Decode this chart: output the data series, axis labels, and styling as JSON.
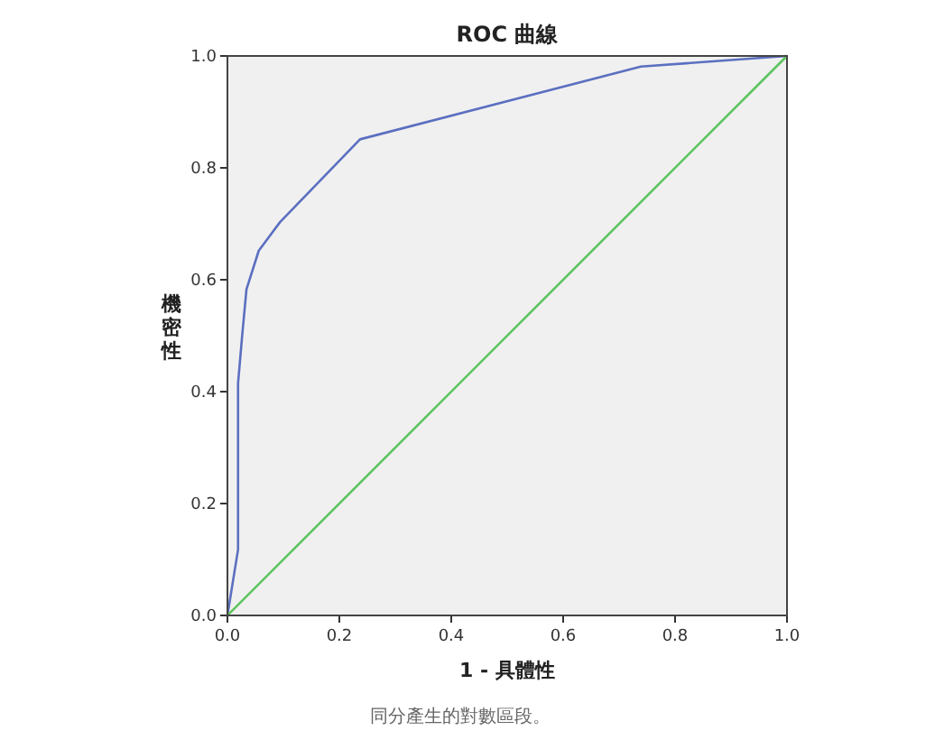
{
  "chart_data": {
    "type": "line",
    "title": "ROC 曲線",
    "xlabel": "1 - 具體性",
    "ylabel": "機密性",
    "annotations": [
      "同分產生的對數區段。"
    ],
    "series": [
      {
        "color": "#5b6fc0",
        "x": [
          0,
          0.019,
          0.019,
          0.026,
          0.034,
          0.056,
          0.094,
          0.237,
          0.739,
          1
        ],
        "values": [
          0,
          0.118,
          0.415,
          0.496,
          0.583,
          0.652,
          0.703,
          0.851,
          0.981,
          1
        ]
      },
      {
        "color": "#5cc45c",
        "x": [
          0,
          1
        ],
        "values": [
          0,
          1
        ]
      }
    ],
    "xlim": [
      0,
      1
    ],
    "ylim": [
      0,
      1
    ],
    "xticks": [
      {
        "value": 0,
        "label": "0.0"
      },
      {
        "value": 0.2,
        "label": "0.2"
      },
      {
        "value": 0.4,
        "label": "0.4"
      },
      {
        "value": 0.6,
        "label": "0.6"
      },
      {
        "value": 0.8,
        "label": "0.8"
      },
      {
        "value": 1,
        "label": "1.0"
      }
    ],
    "yticks": [
      {
        "value": 0,
        "label": "0.0"
      },
      {
        "value": 0.2,
        "label": "0.2"
      },
      {
        "value": 0.4,
        "label": "0.4"
      },
      {
        "value": 0.6,
        "label": "0.6"
      },
      {
        "value": 0.8,
        "label": "0.8"
      },
      {
        "value": 1,
        "label": "1.0"
      }
    ],
    "grid": false,
    "marker": "none",
    "line_style": "solid"
  }
}
